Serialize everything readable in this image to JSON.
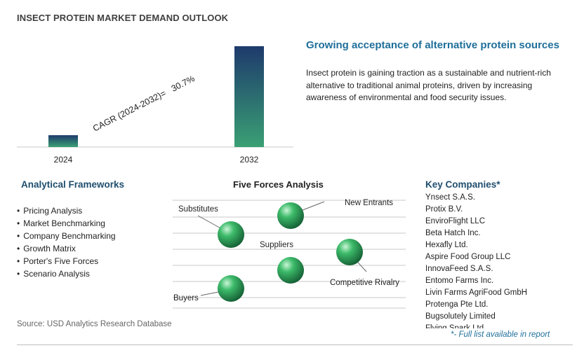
{
  "title": "INSECT PROTEIN MARKET DEMAND OUTLOOK",
  "headline": "Growing acceptance of alternative protein sources",
  "description": "Insect protein is gaining traction as a sustainable and nutrient-rich alternative to traditional animal proteins, driven by increasing awareness of environmental and food security issues.",
  "chart_data": {
    "type": "bar",
    "categories": [
      "2024",
      "2032"
    ],
    "values": [
      1,
      8.51
    ],
    "annotation": "CAGR (2024-2032)=   30.7%",
    "ylabel": "",
    "xlabel": "",
    "grid": false,
    "colors": {
      "bar_top": "#1e3a6c",
      "bar_bottom": "#3aa074"
    }
  },
  "frameworks": {
    "title": "Analytical Frameworks",
    "items": [
      "Pricing Analysis",
      "Market Benchmarking",
      "Company Benchmarking",
      "Growth Matrix",
      "Porter's Five Forces",
      "Scenario Analysis"
    ]
  },
  "five_forces": {
    "title": "Five Forces Analysis",
    "labels": {
      "substitutes": "Substitutes",
      "new_entrants": "New Entrants",
      "suppliers": "Suppliers",
      "competitive_rivalry": "Competitive Rivalry",
      "buyers": "Buyers"
    },
    "sphere_color": "#2e9a5a"
  },
  "companies": {
    "title": "Key Companies*",
    "items": [
      "Ynsect S.A.S.",
      "Protix B.V.",
      "EnviroFlight LLC",
      "Beta Hatch Inc.",
      "Hexafly Ltd.",
      "Aspire Food Group LLC",
      "InnovaFeed S.A.S.",
      "Entomo Farms Inc.",
      "Livin Farms AgriFood GmbH",
      "Protenga Pte Ltd.",
      "Bugsolutely Limited",
      "Flying Spark Ltd."
    ],
    "note": "*- Full list available in report"
  },
  "source": "Source: USD Analytics Research Database"
}
